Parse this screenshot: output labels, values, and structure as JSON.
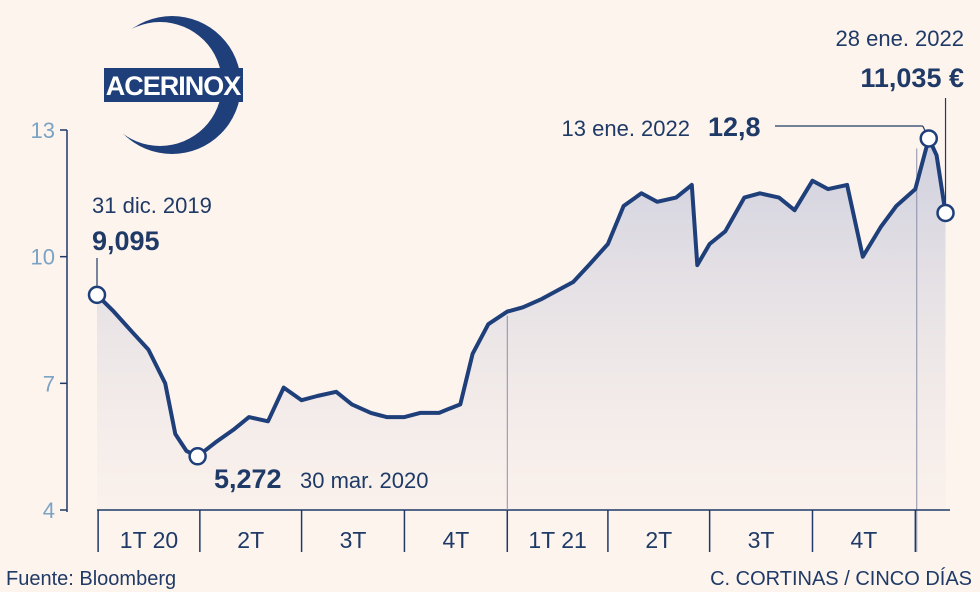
{
  "brand": {
    "logo_text": "ACERINOX",
    "colors": {
      "navy": "#1f3f7a",
      "line": "#1f3f7a",
      "background": "#fdf4ee",
      "axis_tick": "#7aa3c4"
    }
  },
  "chart_data": {
    "type": "line",
    "title": "",
    "xlabel": "",
    "ylabel": "",
    "ylim": [
      4,
      13
    ],
    "yticks": [
      4,
      7,
      10,
      13
    ],
    "xlim": [
      "2019-12-31",
      "2022-02-01"
    ],
    "quarters": [
      "1T 20",
      "2T",
      "3T",
      "4T",
      "1T 21",
      "2T",
      "3T",
      "4T"
    ],
    "grid": false,
    "series": [
      {
        "name": "",
        "x": [
          "2019-12-31",
          "2020-01-15",
          "2020-02-01",
          "2020-02-15",
          "2020-03-01",
          "2020-03-10",
          "2020-03-20",
          "2020-03-30",
          "2020-04-15",
          "2020-05-01",
          "2020-05-15",
          "2020-06-01",
          "2020-06-15",
          "2020-07-01",
          "2020-07-15",
          "2020-08-01",
          "2020-08-15",
          "2020-09-01",
          "2020-09-15",
          "2020-10-01",
          "2020-10-15",
          "2020-11-01",
          "2020-11-10",
          "2020-11-20",
          "2020-12-01",
          "2020-12-15",
          "2021-01-01",
          "2021-01-15",
          "2021-02-01",
          "2021-02-15",
          "2021-03-01",
          "2021-03-15",
          "2021-04-01",
          "2021-04-15",
          "2021-05-01",
          "2021-05-15",
          "2021-06-01",
          "2021-06-15",
          "2021-06-20",
          "2021-07-01",
          "2021-07-15",
          "2021-08-01",
          "2021-08-15",
          "2021-09-01",
          "2021-09-15",
          "2021-10-01",
          "2021-10-15",
          "2021-11-01",
          "2021-11-15",
          "2021-12-01",
          "2021-12-15",
          "2022-01-01",
          "2022-01-13",
          "2022-01-20",
          "2022-01-28"
        ],
        "y": [
          9.095,
          8.7,
          8.2,
          7.8,
          7.0,
          5.8,
          5.4,
          5.272,
          5.6,
          5.9,
          6.2,
          6.1,
          6.9,
          6.6,
          6.7,
          6.8,
          6.5,
          6.3,
          6.2,
          6.2,
          6.3,
          6.3,
          6.4,
          6.5,
          7.7,
          8.4,
          8.7,
          8.8,
          9.0,
          9.2,
          9.4,
          9.8,
          10.3,
          11.2,
          11.5,
          11.3,
          11.4,
          11.7,
          9.8,
          10.3,
          10.6,
          11.4,
          11.5,
          11.4,
          11.1,
          11.8,
          11.6,
          11.7,
          10.0,
          10.7,
          11.2,
          11.6,
          12.8,
          12.4,
          11.035
        ]
      }
    ],
    "annotations": [
      {
        "date_label": "31 dic. 2019",
        "value_label": "9,095",
        "x": "2019-12-31",
        "y": 9.095
      },
      {
        "date_label": "30 mar. 2020",
        "value_label": "5,272",
        "x": "2020-03-30",
        "y": 5.272
      },
      {
        "date_label": "13 ene. 2022",
        "value_label": "12,8",
        "x": "2022-01-13",
        "y": 12.8
      },
      {
        "date_label": "28 ene. 2022",
        "value_label": "11,035 €",
        "x": "2022-01-28",
        "y": 11.035
      }
    ]
  },
  "footer": {
    "source": "Fuente: Bloomberg",
    "credit": "C. CORTINAS / CINCO DÍAS"
  }
}
